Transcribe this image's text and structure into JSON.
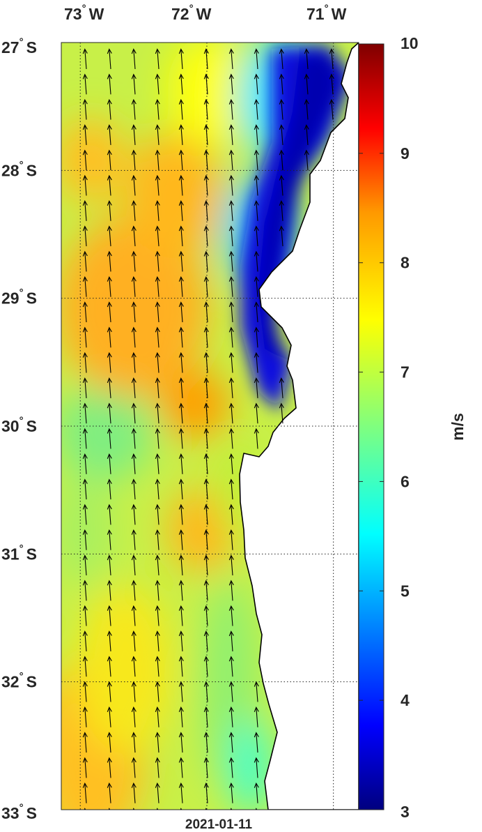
{
  "map": {
    "date_label": "2021-01-11",
    "lon_ticks": [
      {
        "value": -73,
        "deg": "73",
        "hem": "W"
      },
      {
        "value": -72,
        "deg": "72",
        "hem": "W"
      },
      {
        "value": -71,
        "deg": "71",
        "hem": "W"
      }
    ],
    "lat_ticks": [
      {
        "value": -27,
        "deg": "27",
        "hem": "S"
      },
      {
        "value": -28,
        "deg": "28",
        "hem": "S"
      },
      {
        "value": -29,
        "deg": "29",
        "hem": "S"
      },
      {
        "value": -30,
        "deg": "30",
        "hem": "S"
      },
      {
        "value": -31,
        "deg": "31",
        "hem": "S"
      },
      {
        "value": -32,
        "deg": "32",
        "hem": "S"
      },
      {
        "value": -33,
        "deg": "33",
        "hem": "S"
      }
    ],
    "lon_range": [
      -73.15,
      -70.8
    ],
    "lat_range": [
      -33,
      -27
    ],
    "grid": "dotted",
    "land_color": "#ffffff",
    "coast_color": "#000000",
    "arrow_color": "#000000"
  },
  "colorbar": {
    "unit": "m/s",
    "range": [
      3,
      10
    ],
    "ticks": [
      "3",
      "4",
      "5",
      "6",
      "7",
      "8",
      "9",
      "10"
    ],
    "colormap": "jet"
  },
  "chart_data": {
    "type": "heatmap",
    "variable": "wind speed with wind direction vectors",
    "unit": "m/s",
    "value_range": [
      3,
      10
    ],
    "wind_direction": "from south-southeast (arrows pointing north-northwest)",
    "speed_field_samples": [
      {
        "lon": -73.0,
        "lat": -27.5,
        "speed": 6.8
      },
      {
        "lon": -72.6,
        "lat": -28.3,
        "speed": 7.6
      },
      {
        "lon": -72.2,
        "lat": -28.4,
        "speed": 7.8
      },
      {
        "lon": -72.8,
        "lat": -29.0,
        "speed": 7.7
      },
      {
        "lon": -72.1,
        "lat": -29.8,
        "speed": 8.0
      },
      {
        "lon": -72.0,
        "lat": -30.8,
        "speed": 7.6
      },
      {
        "lon": -73.0,
        "lat": -30.3,
        "speed": 6.5
      },
      {
        "lon": -72.7,
        "lat": -31.5,
        "speed": 7.0
      },
      {
        "lon": -72.6,
        "lat": -32.6,
        "speed": 7.4
      },
      {
        "lon": -71.7,
        "lat": -32.0,
        "speed": 6.4
      },
      {
        "lon": -71.4,
        "lat": -29.5,
        "speed": 3.3
      },
      {
        "lon": -71.2,
        "lat": -27.5,
        "speed": 3.2
      }
    ]
  }
}
